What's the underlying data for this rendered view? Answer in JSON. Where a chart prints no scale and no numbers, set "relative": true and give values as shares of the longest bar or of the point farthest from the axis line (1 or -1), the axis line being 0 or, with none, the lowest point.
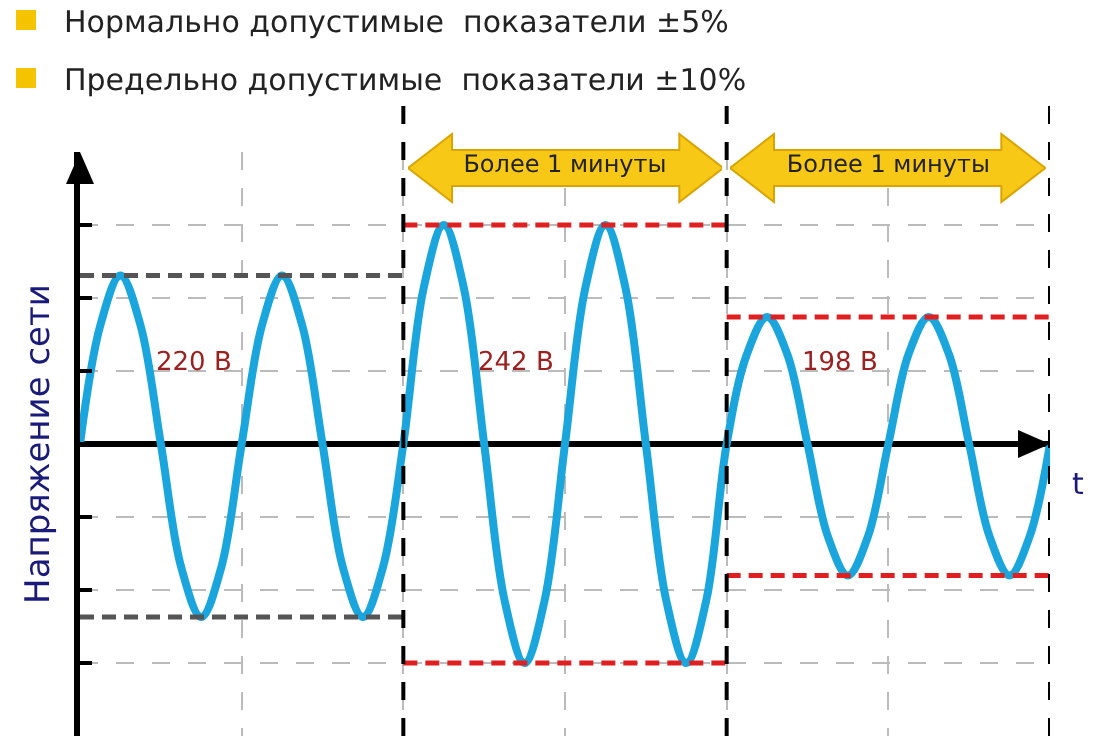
{
  "chart_data": {
    "type": "line",
    "relative": true,
    "ylabel": "Напряжение сети",
    "xlabel": "t",
    "grid": true,
    "marker": "none",
    "annotations": [
      "Нормально допустимые  показатели ±5%",
      "Предельно допустимые  показатели ±10%",
      "Более 1 минуты",
      "Более 1 минуты",
      "220 В",
      "242 В",
      "198 В"
    ],
    "categories": [
      null,
      null,
      null,
      null,
      null,
      null,
      null,
      null,
      null,
      null,
      null,
      null,
      null,
      null,
      null,
      null,
      null,
      null,
      null,
      null,
      null,
      null,
      null,
      null,
      null,
      null,
      null,
      null,
      null,
      null,
      null,
      null,
      null,
      null,
      null,
      null,
      null,
      null,
      null,
      null,
      null,
      null,
      null,
      null,
      null,
      null,
      null,
      null,
      null
    ],
    "series": [
      {
        "color": "#1aa6dc",
        "line_style": "solid",
        "values": [
          0,
          0.54,
          0.77,
          0.54,
          0,
          -0.56,
          -0.79,
          -0.56,
          0,
          0.54,
          0.77,
          0.54,
          0,
          -0.56,
          -0.79,
          -0.56,
          0,
          0.71,
          1,
          0.71,
          0,
          -0.71,
          -1,
          -0.71,
          0,
          0.71,
          1,
          0.71,
          0,
          -0.71,
          -1,
          -0.71,
          0,
          0.41,
          0.58,
          0.41,
          0,
          -0.42,
          -0.6,
          -0.42,
          0,
          0.41,
          0.58,
          0.41,
          0,
          -0.42,
          -0.6,
          -0.42,
          0
        ]
      },
      {
        "color": "#555555",
        "line_style": "dashed",
        "values": [
          0.77,
          0.77,
          0.77,
          0.77,
          0.77,
          0.77,
          0.77,
          0.77,
          0.77,
          0.77,
          0.77,
          0.77,
          0.77,
          0.77,
          0.77,
          0.77,
          0.77,
          null,
          null,
          null,
          null,
          null,
          null,
          null,
          null,
          null,
          null,
          null,
          null,
          null,
          null,
          null,
          null,
          null,
          null,
          null,
          null,
          null,
          null,
          null,
          null,
          null,
          null,
          null,
          null,
          null,
          null,
          null,
          null
        ]
      },
      {
        "color": "#555555",
        "line_style": "dashed",
        "values": [
          -0.79,
          -0.79,
          -0.79,
          -0.79,
          -0.79,
          -0.79,
          -0.79,
          -0.79,
          -0.79,
          -0.79,
          -0.79,
          -0.79,
          -0.79,
          -0.79,
          -0.79,
          -0.79,
          -0.79,
          null,
          null,
          null,
          null,
          null,
          null,
          null,
          null,
          null,
          null,
          null,
          null,
          null,
          null,
          null,
          null,
          null,
          null,
          null,
          null,
          null,
          null,
          null,
          null,
          null,
          null,
          null,
          null,
          null,
          null,
          null,
          null
        ]
      },
      {
        "color": "#e02020",
        "line_style": "dashed",
        "values": [
          null,
          null,
          null,
          null,
          null,
          null,
          null,
          null,
          null,
          null,
          null,
          null,
          null,
          null,
          null,
          null,
          1,
          1,
          1,
          1,
          1,
          1,
          1,
          1,
          1,
          1,
          1,
          1,
          1,
          1,
          1,
          1,
          1,
          null,
          null,
          null,
          null,
          null,
          null,
          null,
          null,
          null,
          null,
          null,
          null,
          null,
          null,
          null,
          null
        ]
      },
      {
        "color": "#e02020",
        "line_style": "dashed",
        "values": [
          null,
          null,
          null,
          null,
          null,
          null,
          null,
          null,
          null,
          null,
          null,
          null,
          null,
          null,
          null,
          null,
          -1,
          -1,
          -1,
          -1,
          -1,
          -1,
          -1,
          -1,
          -1,
          -1,
          -1,
          -1,
          -1,
          -1,
          -1,
          -1,
          -1,
          null,
          null,
          null,
          null,
          null,
          null,
          null,
          null,
          null,
          null,
          null,
          null,
          null,
          null,
          null,
          null
        ]
      },
      {
        "color": "#e02020",
        "line_style": "dashed",
        "values": [
          null,
          null,
          null,
          null,
          null,
          null,
          null,
          null,
          null,
          null,
          null,
          null,
          null,
          null,
          null,
          null,
          null,
          null,
          null,
          null,
          null,
          null,
          null,
          null,
          null,
          null,
          null,
          null,
          null,
          null,
          null,
          null,
          0.58,
          0.58,
          0.58,
          0.58,
          0.58,
          0.58,
          0.58,
          0.58,
          0.58,
          0.58,
          0.58,
          0.58,
          0.58,
          0.58,
          0.58,
          0.58,
          0.58
        ]
      },
      {
        "color": "#e02020",
        "line_style": "dashed",
        "values": [
          null,
          null,
          null,
          null,
          null,
          null,
          null,
          null,
          null,
          null,
          null,
          null,
          null,
          null,
          null,
          null,
          null,
          null,
          null,
          null,
          null,
          null,
          null,
          null,
          null,
          null,
          null,
          null,
          null,
          null,
          null,
          null,
          -0.6,
          -0.6,
          -0.6,
          -0.6,
          -0.6,
          -0.6,
          -0.6,
          -0.6,
          -0.6,
          -0.6,
          -0.6,
          -0.6,
          -0.6,
          -0.6,
          -0.6,
          -0.6,
          -0.6
        ]
      }
    ]
  }
}
